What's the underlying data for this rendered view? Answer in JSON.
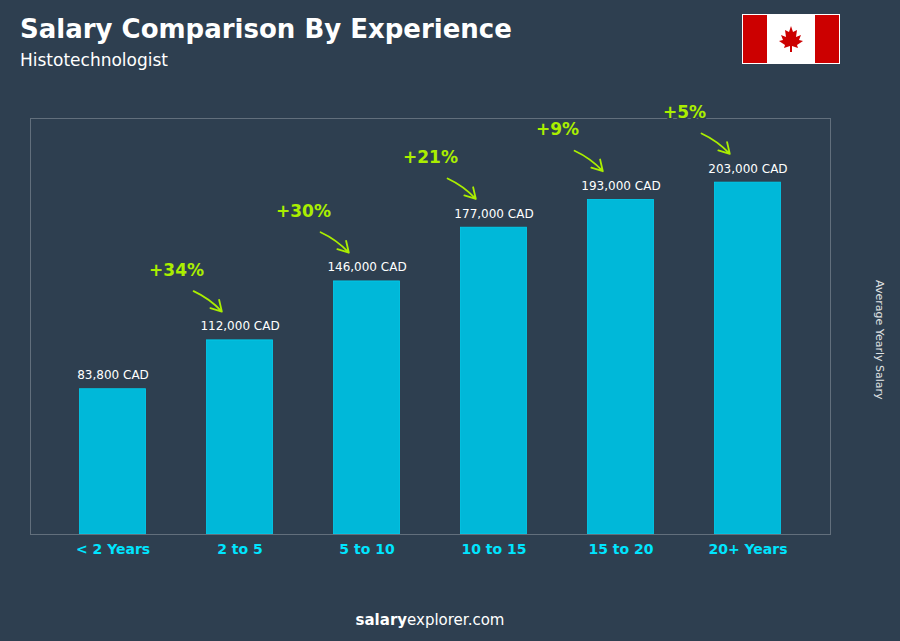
{
  "chart_data": {
    "type": "bar",
    "title": "Salary Comparison By Experience",
    "subtitle": "Histotechnologist",
    "ylabel": "Average Yearly Salary",
    "footer": [
      "salary",
      "explorer.com"
    ],
    "categories": [
      "< 2 Years",
      "2 to 5",
      "5 to 10",
      "10 to 15",
      "15 to 20",
      "20+ Years"
    ],
    "values": [
      83800,
      112000,
      146000,
      177000,
      193000,
      203000
    ],
    "value_labels": [
      "83,800 CAD",
      "112,000 CAD",
      "146,000 CAD",
      "177,000 CAD",
      "193,000 CAD",
      "203,000 CAD"
    ],
    "data_labels": true,
    "annotations": [
      {
        "text": "+34%",
        "color": "#aaee00"
      },
      {
        "text": "+30%",
        "color": "#aaee00"
      },
      {
        "text": "+21%",
        "color": "#aaee00"
      },
      {
        "text": "+9%",
        "color": "#aaee00"
      },
      {
        "text": "+5%",
        "color": "#aaee00"
      }
    ],
    "color": "#00b8d9",
    "ylim": [
      0,
      240000
    ],
    "grid": false,
    "tick_labels": "x"
  }
}
